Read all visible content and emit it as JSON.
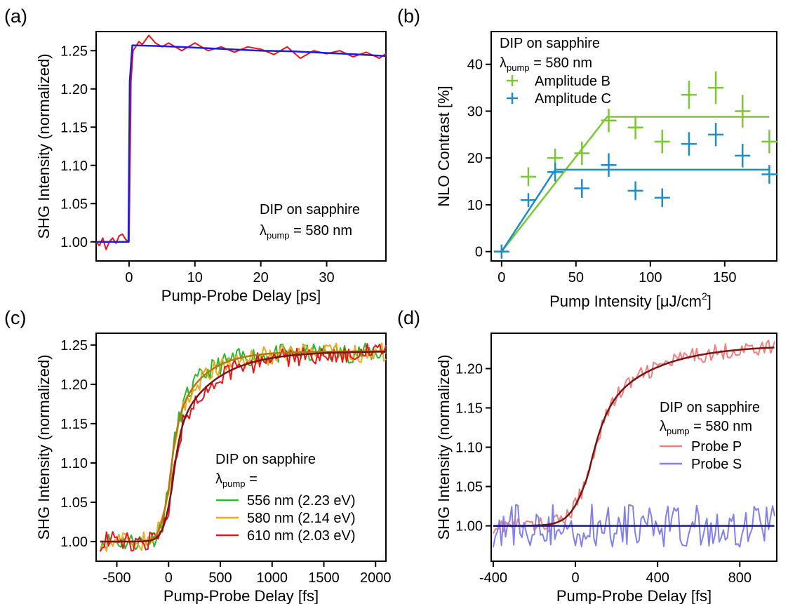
{
  "chart_data": [
    {
      "panel": "(a)",
      "type": "line",
      "xlabel": "Pump-Probe Delay [ps]",
      "ylabel": "SHG Intensity (normalized)",
      "xlim": [
        -5,
        39
      ],
      "ylim": [
        0.975,
        1.275
      ],
      "xticks": [
        0,
        10,
        20,
        30
      ],
      "yticks": [
        1.0,
        1.05,
        1.1,
        1.15,
        1.2,
        1.25
      ],
      "ytick_labels": [
        "1.00",
        "1.05",
        "1.10",
        "1.15",
        "1.20",
        "1.25"
      ],
      "annotation": {
        "line1": "DIP on sapphire",
        "lambda_sym": "λ",
        "lambda_sub": "pump",
        "lambda_val": " = 580 nm"
      },
      "series": [
        {
          "role": "data",
          "color": "#e8141c",
          "x": [
            -5,
            -4.5,
            -4,
            -3.5,
            -3,
            -2.5,
            -2,
            -1.5,
            -1,
            -0.5,
            0,
            0.3,
            0.6,
            1,
            1.5,
            2,
            3,
            4,
            5,
            6,
            8,
            10,
            12,
            14,
            16,
            18,
            20,
            22,
            24,
            26,
            28,
            30,
            32,
            34,
            36,
            38,
            39
          ],
          "y": [
            1.0,
            0.995,
            1.005,
            0.99,
            1.0,
            1.005,
            0.998,
            1.008,
            1.01,
            1.003,
            1.0,
            1.21,
            1.25,
            1.255,
            1.262,
            1.258,
            1.27,
            1.26,
            1.255,
            1.26,
            1.25,
            1.26,
            1.25,
            1.255,
            1.248,
            1.255,
            1.252,
            1.245,
            1.255,
            1.24,
            1.25,
            1.246,
            1.25,
            1.242,
            1.248,
            1.24,
            1.246
          ]
        },
        {
          "role": "fit",
          "color": "#1c1ce6",
          "x": [
            -5,
            -0.1,
            0.1,
            0.5,
            5,
            10,
            15,
            20,
            25,
            30,
            35,
            39
          ],
          "y": [
            1.0,
            1.0,
            1.21,
            1.257,
            1.256,
            1.254,
            1.252,
            1.25,
            1.249,
            1.247,
            1.245,
            1.243
          ]
        }
      ]
    },
    {
      "panel": "(b)",
      "type": "scatter",
      "xlabel_main": "Pump Intensity [",
      "xlabel_mu": "μ",
      "xlabel_mid": "J/cm",
      "xlabel_sup": "2",
      "xlabel_end": "]",
      "ylabel": "NLO Contrast [%]",
      "xlim": [
        -7,
        185
      ],
      "ylim": [
        -2,
        47
      ],
      "xticks": [
        0,
        50,
        100,
        150
      ],
      "yticks": [
        0,
        10,
        20,
        30,
        40
      ],
      "annotation": {
        "line1": "DIP on sapphire",
        "lambda_sym": "λ",
        "lambda_sub": "pump",
        "lambda_val": " = 580 nm"
      },
      "series": [
        {
          "name": "Amplitude B",
          "color": "#7ac832",
          "x": [
            0,
            18,
            36,
            54,
            72,
            90,
            108,
            126,
            144,
            162,
            180
          ],
          "y": [
            0,
            16,
            20,
            21,
            28,
            26.5,
            23.5,
            33.5,
            35,
            30,
            23.5
          ],
          "yerr": [
            1.5,
            2,
            2,
            2.5,
            2.5,
            2.5,
            2.5,
            3,
            3.5,
            3.5,
            2.5
          ],
          "fit_x": [
            0,
            71,
            180
          ],
          "fit_y": [
            0,
            28.8,
            28.8
          ]
        },
        {
          "name": "Amplitude C",
          "color": "#1e8cc8",
          "x": [
            0,
            18,
            36,
            54,
            72,
            90,
            108,
            126,
            144,
            162,
            180
          ],
          "y": [
            0,
            11,
            17,
            13.5,
            18.5,
            13,
            11.5,
            23,
            25,
            20.5,
            16.5
          ],
          "yerr": [
            1.5,
            1.5,
            2,
            2,
            2.5,
            2,
            2,
            2.5,
            2.5,
            2.5,
            2
          ],
          "fit_x": [
            0,
            36,
            180
          ],
          "fit_y": [
            0,
            17.5,
            17.5
          ]
        }
      ]
    },
    {
      "panel": "(c)",
      "type": "line",
      "xlabel": "Pump-Probe Delay [fs]",
      "ylabel": "SHG Intensity (normalized)",
      "xlim": [
        -700,
        2100
      ],
      "ylim": [
        0.975,
        1.265
      ],
      "xticks": [
        -500,
        0,
        500,
        1000,
        1500,
        2000
      ],
      "yticks": [
        1.0,
        1.05,
        1.1,
        1.15,
        1.2,
        1.25
      ],
      "ytick_labels": [
        "1.00",
        "1.05",
        "1.10",
        "1.15",
        "1.20",
        "1.25"
      ],
      "annotation": {
        "line1": "DIP on sapphire",
        "lambda_sym": "λ",
        "lambda_sub": "pump",
        "lambda_val": " ="
      },
      "series": [
        {
          "name": "556 nm (2.23 eV)",
          "color": "#2ab82a",
          "t0": 0,
          "tau": 250,
          "amp": 0.24
        },
        {
          "name": "580 nm (2.14 eV)",
          "color": "#f0a820",
          "t0": 0,
          "tau": 280,
          "amp": 0.24
        },
        {
          "name": "610 nm (2.03 eV)",
          "color": "#e8141c",
          "t0": 30,
          "tau": 380,
          "amp": 0.24
        }
      ],
      "fits": [
        {
          "color": "#b07a10",
          "t0": 0,
          "tau": 270,
          "amp": 0.242
        },
        {
          "color": "#7a1410",
          "t0": 30,
          "tau": 380,
          "amp": 0.242
        }
      ]
    },
    {
      "panel": "(d)",
      "type": "line",
      "xlabel": "Pump-Probe Delay [fs]",
      "ylabel": "SHG Intensity (normalized)",
      "xlim": [
        -410,
        980
      ],
      "ylim": [
        0.955,
        1.245
      ],
      "xticks": [
        -400,
        0,
        400,
        800
      ],
      "yticks": [
        1.0,
        1.05,
        1.1,
        1.15,
        1.2
      ],
      "ytick_labels": [
        "1.00",
        "1.05",
        "1.10",
        "1.15",
        "1.20"
      ],
      "annotation": {
        "line1": "DIP on sapphire",
        "lambda_sym": "λ",
        "lambda_sub": "pump",
        "lambda_val": " = 580 nm"
      },
      "series": [
        {
          "name": "Probe P",
          "color": "#f08080",
          "t0": 60,
          "tau": 260,
          "amp": 0.23
        },
        {
          "name": "Probe S",
          "color": "#8080f0",
          "t0": 0,
          "tau": 1,
          "amp": 0
        }
      ],
      "fits": [
        {
          "color": "#7a1410",
          "t0": 60,
          "tau": 260,
          "amp": 0.23
        },
        {
          "color": "#1c1c8c",
          "t0": 0,
          "tau": 1,
          "amp": 0
        }
      ]
    }
  ]
}
